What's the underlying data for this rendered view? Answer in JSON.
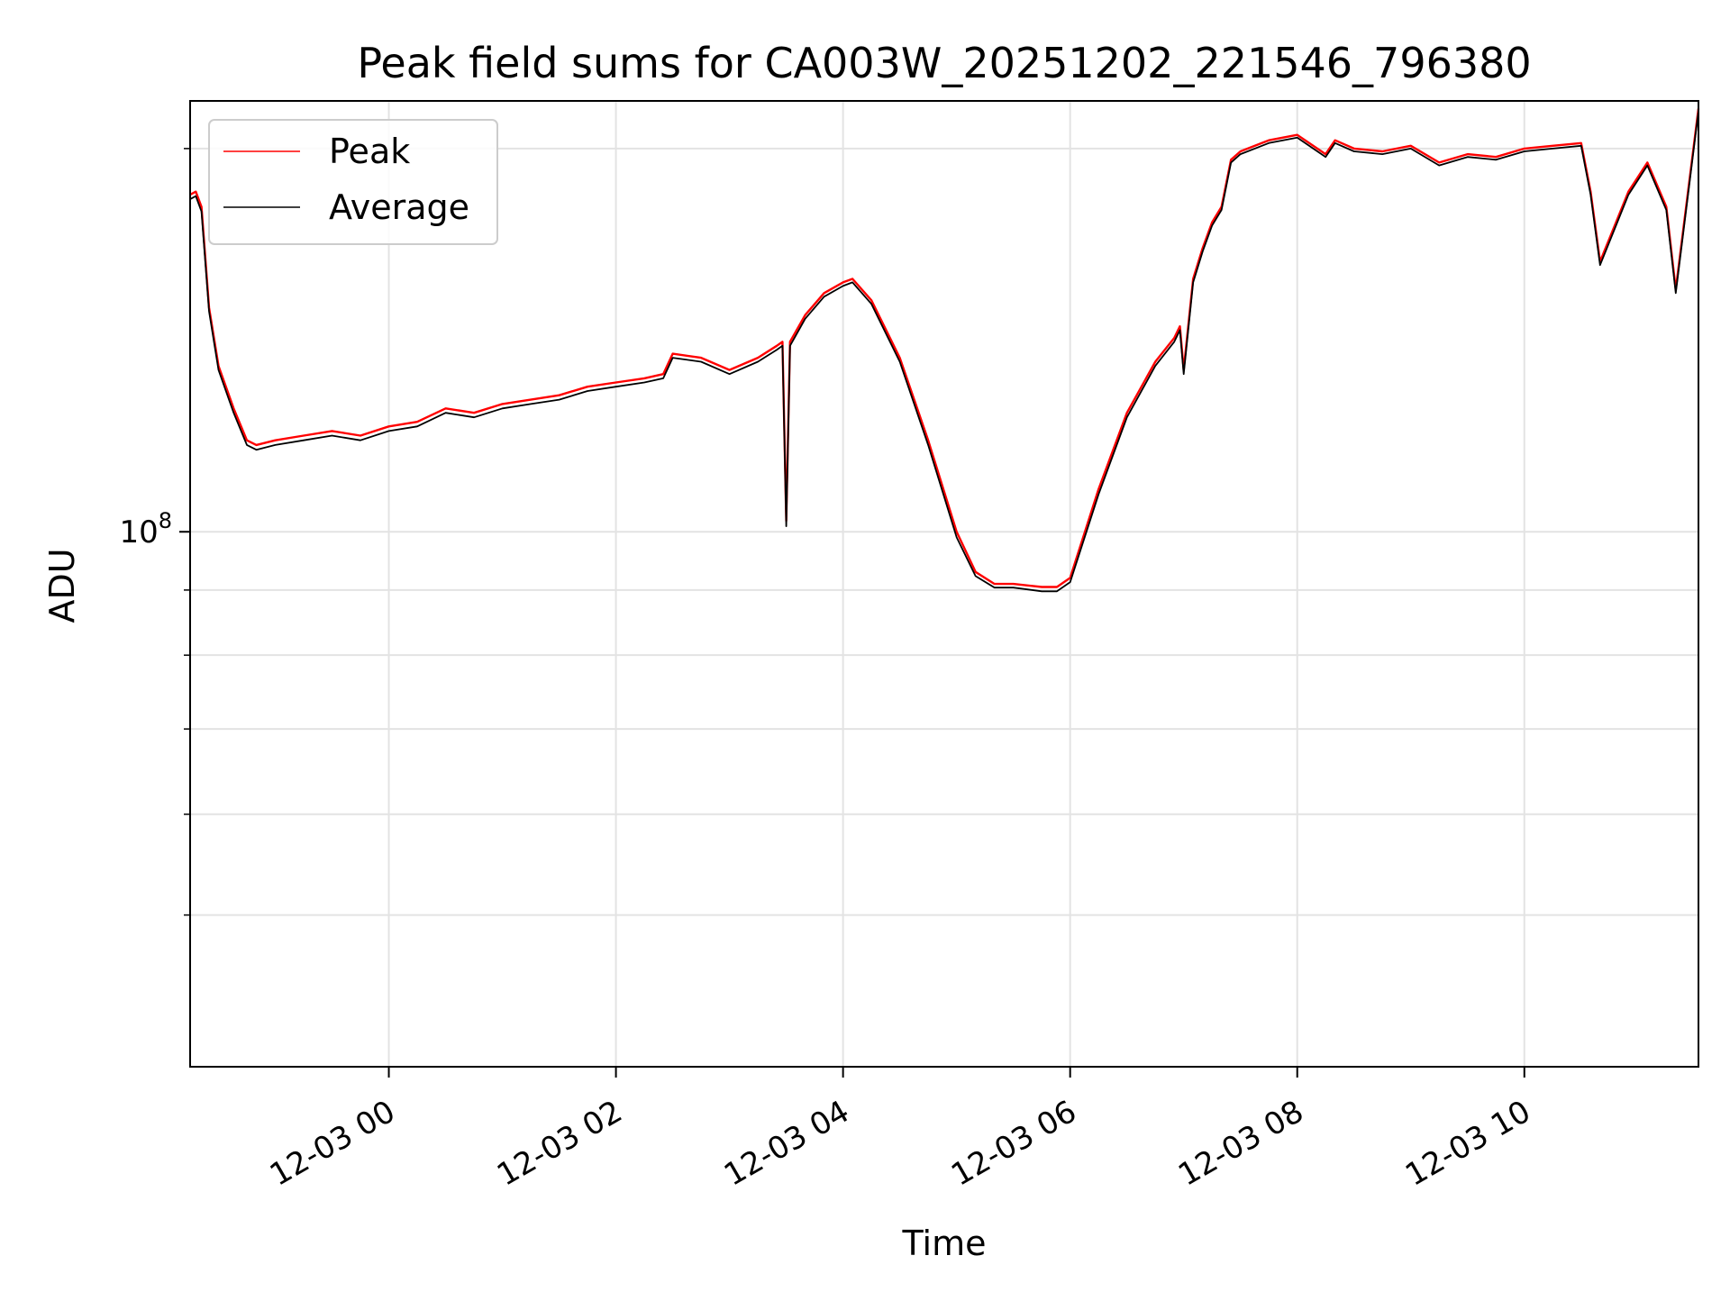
{
  "chart_data": {
    "type": "line",
    "title": "Peak field sums for CA003W_20251202_221546_796380",
    "xlabel": "Time",
    "ylabel": "ADU",
    "y_scale": "log",
    "grid": true,
    "legend_placement": "top-left",
    "xlim": [
      "2025-12-02 22:15",
      "2025-12-03 11:32"
    ],
    "ylim": [
      38000000,
      218000000
    ],
    "x_ticks": [
      "2025-12-03 00:00",
      "2025-12-03 02:00",
      "2025-12-03 04:00",
      "2025-12-03 06:00",
      "2025-12-03 08:00",
      "2025-12-03 10:00"
    ],
    "x_tick_labels": [
      "12-03 00",
      "12-03 02",
      "12-03 04",
      "12-03 06",
      "12-03 08",
      "12-03 10"
    ],
    "y_major_ticks": [
      100000000
    ],
    "y_tick_labels": [
      {
        "base": "10",
        "exp": "8"
      }
    ],
    "y_minor_ticks": [
      50000000,
      60000000,
      70000000,
      80000000,
      90000000,
      200000000
    ],
    "x": [
      "2025-12-02 22:15",
      "2025-12-02 22:18",
      "2025-12-02 22:21",
      "2025-12-02 22:25",
      "2025-12-02 22:30",
      "2025-12-02 22:38",
      "2025-12-02 22:45",
      "2025-12-02 22:50",
      "2025-12-02 23:00",
      "2025-12-02 23:15",
      "2025-12-02 23:30",
      "2025-12-02 23:45",
      "2025-12-03 00:00",
      "2025-12-03 00:15",
      "2025-12-03 00:30",
      "2025-12-03 00:45",
      "2025-12-03 01:00",
      "2025-12-03 01:15",
      "2025-12-03 01:30",
      "2025-12-03 01:45",
      "2025-12-03 02:00",
      "2025-12-03 02:15",
      "2025-12-03 02:25",
      "2025-12-03 02:30",
      "2025-12-03 02:45",
      "2025-12-03 03:00",
      "2025-12-03 03:15",
      "2025-12-03 03:25",
      "2025-12-03 03:28",
      "2025-12-03 03:30",
      "2025-12-03 03:32",
      "2025-12-03 03:40",
      "2025-12-03 03:50",
      "2025-12-03 04:00",
      "2025-12-03 04:05",
      "2025-12-03 04:15",
      "2025-12-03 04:30",
      "2025-12-03 04:45",
      "2025-12-03 05:00",
      "2025-12-03 05:10",
      "2025-12-03 05:20",
      "2025-12-03 05:30",
      "2025-12-03 05:45",
      "2025-12-03 05:53",
      "2025-12-03 06:00",
      "2025-12-03 06:15",
      "2025-12-03 06:30",
      "2025-12-03 06:45",
      "2025-12-03 06:55",
      "2025-12-03 06:58",
      "2025-12-03 07:00",
      "2025-12-03 07:05",
      "2025-12-03 07:10",
      "2025-12-03 07:15",
      "2025-12-03 07:20",
      "2025-12-03 07:25",
      "2025-12-03 07:30",
      "2025-12-03 07:45",
      "2025-12-03 08:00",
      "2025-12-03 08:15",
      "2025-12-03 08:20",
      "2025-12-03 08:30",
      "2025-12-03 08:45",
      "2025-12-03 09:00",
      "2025-12-03 09:15",
      "2025-12-03 09:30",
      "2025-12-03 09:45",
      "2025-12-03 10:00",
      "2025-12-03 10:15",
      "2025-12-03 10:30",
      "2025-12-03 10:35",
      "2025-12-03 10:40",
      "2025-12-03 10:45",
      "2025-12-03 10:55",
      "2025-12-03 11:05",
      "2025-12-03 11:15",
      "2025-12-03 11:20",
      "2025-12-03 11:32"
    ],
    "series": [
      {
        "name": "Peak",
        "color": "#ff0000",
        "values": [
          184000000,
          185000000,
          180000000,
          150000000,
          135000000,
          125000000,
          118000000,
          117000000,
          118000000,
          119000000,
          120000000,
          119000000,
          121000000,
          122000000,
          125000000,
          124000000,
          126000000,
          127000000,
          128000000,
          130000000,
          131000000,
          132000000,
          133000000,
          138000000,
          137000000,
          134000000,
          137000000,
          140000000,
          141000000,
          102000000,
          141000000,
          148000000,
          154000000,
          157000000,
          158000000,
          152000000,
          137000000,
          118000000,
          100000000,
          93000000,
          91000000,
          91000000,
          90500000,
          90500000,
          92000000,
          108000000,
          124000000,
          136000000,
          142000000,
          145000000,
          134000000,
          158000000,
          167000000,
          175000000,
          180000000,
          196000000,
          199000000,
          203000000,
          205000000,
          198000000,
          203000000,
          200000000,
          199000000,
          201000000,
          195000000,
          198000000,
          197000000,
          200000000,
          201000000,
          202000000,
          185000000,
          163000000,
          170000000,
          185000000,
          195000000,
          180000000,
          155000000,
          215000000
        ]
      },
      {
        "name": "Average",
        "color": "#000000",
        "values": [
          182500000,
          183500000,
          178500000,
          149000000,
          134000000,
          124000000,
          117000000,
          116000000,
          117000000,
          118000000,
          119000000,
          118000000,
          120000000,
          121000000,
          124000000,
          123000000,
          125000000,
          126000000,
          127000000,
          129000000,
          130000000,
          131000000,
          132000000,
          137000000,
          136000000,
          133000000,
          136000000,
          139000000,
          140000000,
          101000000,
          140000000,
          147000000,
          153000000,
          156000000,
          157000000,
          151000000,
          136000000,
          117000000,
          99000000,
          92300000,
          90400000,
          90400000,
          89800000,
          89800000,
          91300000,
          107000000,
          123000000,
          135000000,
          141000000,
          144000000,
          133000000,
          157000000,
          166000000,
          174000000,
          179000000,
          195000000,
          198000000,
          202000000,
          204000000,
          197000000,
          202000000,
          199000000,
          198000000,
          200000000,
          194000000,
          197000000,
          196000000,
          199000000,
          200000000,
          201000000,
          184000000,
          162000000,
          169000000,
          184000000,
          194000000,
          179000000,
          154000000,
          214000000
        ]
      }
    ]
  }
}
